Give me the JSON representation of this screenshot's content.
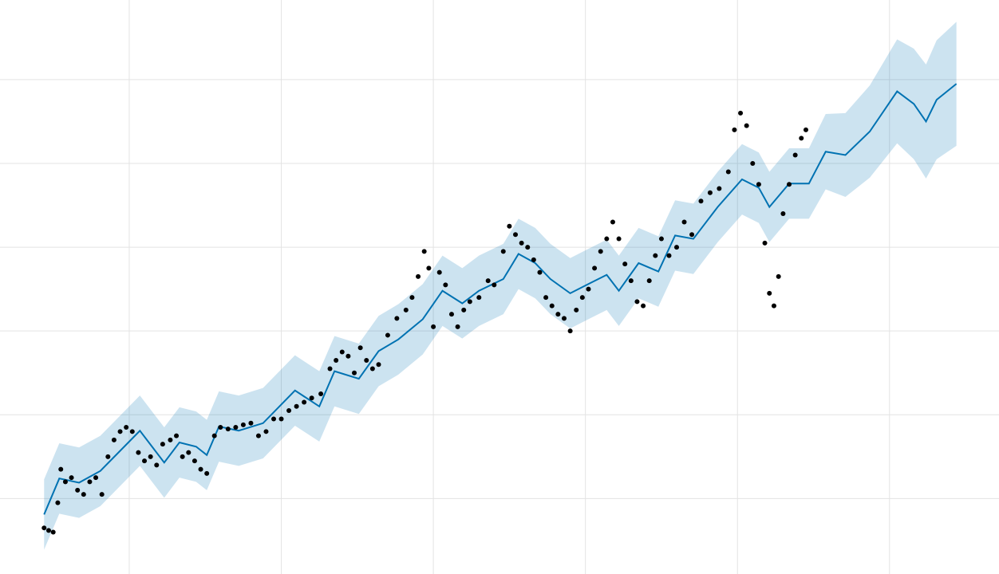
{
  "chart_data": {
    "type": "forecast",
    "xlim": [
      0.15,
      6.72
    ],
    "ylim": [
      0.1,
      6.95
    ],
    "xticks": [
      1,
      2,
      3,
      4,
      5,
      6
    ],
    "yticks": [
      1,
      2,
      3,
      4,
      5,
      6
    ],
    "grid": true,
    "point_color": "#000000",
    "line_color": "#0072b2",
    "band_color": "#0072b2",
    "points": {
      "x": [
        0.44,
        0.47,
        0.5,
        0.53,
        0.55,
        0.58,
        0.62,
        0.66,
        0.7,
        0.74,
        0.78,
        0.82,
        0.86,
        0.9,
        0.94,
        0.98,
        1.02,
        1.06,
        1.1,
        1.14,
        1.18,
        1.22,
        1.27,
        1.31,
        1.35,
        1.39,
        1.43,
        1.47,
        1.51,
        1.56,
        1.6,
        1.65,
        1.7,
        1.75,
        1.8,
        1.85,
        1.9,
        1.95,
        2.0,
        2.05,
        2.1,
        2.15,
        2.2,
        2.26,
        2.32,
        2.36,
        2.4,
        2.44,
        2.48,
        2.52,
        2.56,
        2.6,
        2.64,
        2.7,
        2.76,
        2.82,
        2.86,
        2.9,
        2.94,
        2.97,
        3.0,
        3.04,
        3.08,
        3.12,
        3.16,
        3.2,
        3.24,
        3.3,
        3.36,
        3.4,
        3.46,
        3.5,
        3.54,
        3.58,
        3.62,
        3.66,
        3.7,
        3.74,
        3.78,
        3.82,
        3.86,
        3.9,
        3.94,
        3.98,
        4.02,
        4.06,
        4.1,
        4.14,
        4.18,
        4.22,
        4.26,
        4.3,
        4.34,
        4.38,
        4.42,
        4.46,
        4.5,
        4.55,
        4.6,
        4.65,
        4.7,
        4.76,
        4.82,
        4.88,
        4.94,
        4.98,
        5.02,
        5.06,
        5.1,
        5.14,
        5.18,
        5.21,
        5.24,
        5.27,
        5.3,
        5.34,
        5.38,
        5.42,
        5.45
      ],
      "y": [
        0.65,
        0.62,
        0.6,
        0.95,
        1.35,
        1.2,
        1.25,
        1.1,
        1.05,
        1.2,
        1.25,
        1.05,
        1.5,
        1.7,
        1.8,
        1.85,
        1.8,
        1.55,
        1.45,
        1.5,
        1.4,
        1.65,
        1.7,
        1.75,
        1.5,
        1.55,
        1.45,
        1.35,
        1.3,
        1.75,
        1.85,
        1.83,
        1.85,
        1.88,
        1.9,
        1.75,
        1.8,
        1.95,
        1.95,
        2.05,
        2.1,
        2.15,
        2.2,
        2.25,
        2.55,
        2.65,
        2.75,
        2.7,
        2.5,
        2.8,
        2.65,
        2.55,
        2.6,
        2.95,
        3.15,
        3.25,
        3.4,
        3.65,
        3.95,
        3.75,
        3.05,
        3.7,
        3.55,
        3.2,
        3.05,
        3.25,
        3.35,
        3.4,
        3.6,
        3.55,
        3.95,
        4.25,
        4.15,
        4.05,
        4.0,
        3.85,
        3.7,
        3.4,
        3.3,
        3.2,
        3.15,
        3.0,
        3.25,
        3.4,
        3.5,
        3.75,
        3.95,
        4.1,
        4.3,
        4.1,
        3.8,
        3.6,
        3.35,
        3.3,
        3.6,
        3.9,
        4.1,
        3.9,
        4.0,
        4.3,
        4.15,
        4.55,
        4.65,
        4.7,
        4.9,
        5.4,
        5.6,
        5.45,
        5.0,
        4.75,
        4.05,
        3.45,
        3.3,
        3.65,
        4.4,
        4.75,
        5.1,
        5.3,
        5.4
      ]
    },
    "forecast": {
      "x": [
        0.44,
        0.54,
        0.67,
        0.81,
        0.94,
        1.07,
        1.15,
        1.23,
        1.33,
        1.44,
        1.51,
        1.59,
        1.72,
        1.88,
        2.09,
        2.25,
        2.35,
        2.51,
        2.64,
        2.77,
        2.93,
        3.06,
        3.19,
        3.3,
        3.46,
        3.56,
        3.67,
        3.77,
        3.9,
        4.03,
        4.14,
        4.22,
        4.35,
        4.48,
        4.59,
        4.71,
        4.87,
        5.03,
        5.14,
        5.21,
        5.34,
        5.47,
        5.58,
        5.71,
        5.87,
        6.05,
        6.16,
        6.24,
        6.31,
        6.44
      ],
      "values": [
        0.81,
        1.24,
        1.19,
        1.33,
        1.57,
        1.81,
        1.62,
        1.43,
        1.67,
        1.62,
        1.52,
        1.86,
        1.81,
        1.9,
        2.29,
        2.1,
        2.52,
        2.43,
        2.76,
        2.9,
        3.14,
        3.48,
        3.33,
        3.48,
        3.62,
        3.92,
        3.81,
        3.62,
        3.45,
        3.57,
        3.67,
        3.48,
        3.81,
        3.71,
        4.14,
        4.1,
        4.48,
        4.81,
        4.71,
        4.48,
        4.76,
        4.76,
        5.14,
        5.1,
        5.38,
        5.86,
        5.71,
        5.5,
        5.76,
        5.95
      ],
      "upper": [
        1.23,
        1.66,
        1.61,
        1.75,
        1.99,
        2.23,
        2.04,
        1.85,
        2.09,
        2.04,
        1.94,
        2.28,
        2.23,
        2.32,
        2.71,
        2.52,
        2.94,
        2.85,
        3.18,
        3.32,
        3.56,
        3.9,
        3.75,
        3.9,
        4.04,
        4.34,
        4.23,
        4.04,
        3.87,
        3.99,
        4.09,
        3.9,
        4.23,
        4.13,
        4.56,
        4.52,
        4.9,
        5.23,
        5.13,
        4.9,
        5.18,
        5.18,
        5.59,
        5.6,
        5.93,
        6.48,
        6.37,
        6.18,
        6.47,
        6.69
      ],
      "lower": [
        0.39,
        0.82,
        0.77,
        0.91,
        1.15,
        1.39,
        1.2,
        1.01,
        1.25,
        1.2,
        1.1,
        1.44,
        1.39,
        1.48,
        1.87,
        1.68,
        2.1,
        2.01,
        2.34,
        2.48,
        2.72,
        3.06,
        2.91,
        3.06,
        3.2,
        3.5,
        3.39,
        3.2,
        3.03,
        3.15,
        3.25,
        3.06,
        3.39,
        3.29,
        3.72,
        3.68,
        4.06,
        4.39,
        4.29,
        4.06,
        4.34,
        4.34,
        4.69,
        4.6,
        4.83,
        5.24,
        5.05,
        4.82,
        5.05,
        5.21
      ]
    }
  }
}
